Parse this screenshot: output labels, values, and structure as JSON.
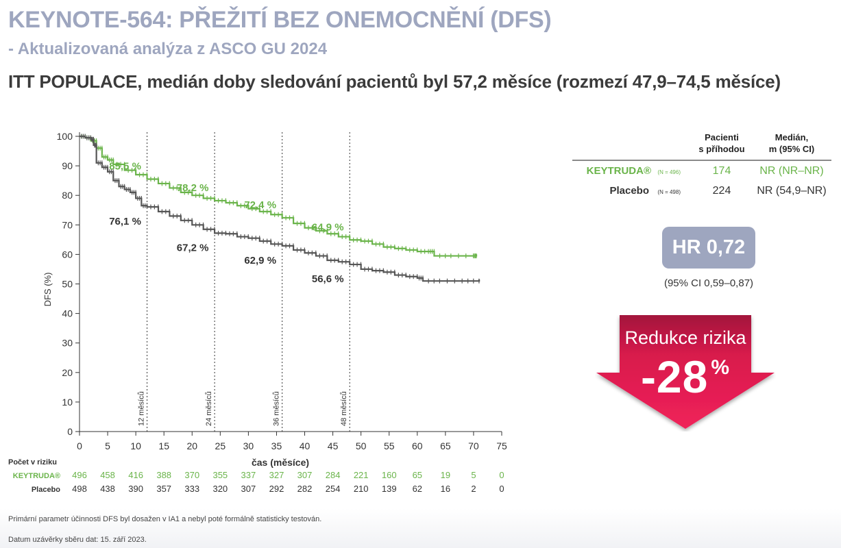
{
  "header": {
    "title": "KEYNOTE-564: PŘEŽITÍ BEZ ONEMOCNĚNÍ (DFS)",
    "subtitle": "- Aktualizovaná analýza z ASCO GU 2024",
    "heading": "ITT POPULACE, medián doby sledování pacientů byl 57,2 měsíce (rozmezí 47,9–74,5 měsíce)"
  },
  "colors": {
    "keytruda": "#6ab44a",
    "placebo": "#555555",
    "title": "#9ea6bf",
    "hr_box": "#9ea6bf",
    "arrow": "#e8174f"
  },
  "chart_data": {
    "type": "line",
    "xlabel": "čas (měsíce)",
    "ylabel": "DFS (%)",
    "xlim": [
      0,
      75
    ],
    "ylim": [
      0,
      100
    ],
    "x_ticks": [
      0,
      5,
      10,
      15,
      20,
      25,
      30,
      35,
      40,
      45,
      50,
      55,
      60,
      65,
      70,
      75
    ],
    "y_ticks": [
      0,
      10,
      20,
      30,
      40,
      50,
      60,
      70,
      80,
      90,
      100
    ],
    "reference_lines": [
      {
        "x": 12,
        "label": "12 měsíců"
      },
      {
        "x": 24,
        "label": "24 měsíců"
      },
      {
        "x": 36,
        "label": "36 měsíců"
      },
      {
        "x": 48,
        "label": "48 měsíců"
      }
    ],
    "series": [
      {
        "name": "KEYTRUDA®",
        "points": [
          [
            0,
            100
          ],
          [
            1,
            99.5
          ],
          [
            2,
            98.5
          ],
          [
            3,
            96
          ],
          [
            4,
            93
          ],
          [
            5,
            92
          ],
          [
            6,
            90.5
          ],
          [
            8,
            88.5
          ],
          [
            10,
            87
          ],
          [
            12,
            85.5
          ],
          [
            14,
            84
          ],
          [
            16,
            82.5
          ],
          [
            18,
            81
          ],
          [
            20,
            80
          ],
          [
            22,
            79
          ],
          [
            24,
            78.2
          ],
          [
            26,
            77.5
          ],
          [
            28,
            76.5
          ],
          [
            30,
            75.5
          ],
          [
            32,
            74.5
          ],
          [
            34,
            73.5
          ],
          [
            36,
            72.4
          ],
          [
            38,
            70.5
          ],
          [
            40,
            69
          ],
          [
            42,
            68
          ],
          [
            44,
            67
          ],
          [
            46,
            66
          ],
          [
            48,
            64.9
          ],
          [
            50,
            64.5
          ],
          [
            52,
            63.5
          ],
          [
            54,
            62.5
          ],
          [
            56,
            62
          ],
          [
            58,
            61.5
          ],
          [
            60,
            61
          ],
          [
            62,
            61
          ],
          [
            63,
            59.5
          ],
          [
            66,
            59.5
          ],
          [
            70,
            59.5
          ],
          [
            70.5,
            60
          ]
        ]
      },
      {
        "name": "Placebo",
        "points": [
          [
            0,
            100
          ],
          [
            1,
            99.5
          ],
          [
            2,
            99
          ],
          [
            2.5,
            97
          ],
          [
            3,
            91
          ],
          [
            4,
            89.5
          ],
          [
            5,
            88
          ],
          [
            6,
            85
          ],
          [
            7,
            83
          ],
          [
            8,
            82
          ],
          [
            9,
            81
          ],
          [
            10,
            79
          ],
          [
            11,
            76.5
          ],
          [
            12,
            76.1
          ],
          [
            14,
            74.5
          ],
          [
            16,
            73
          ],
          [
            18,
            71.5
          ],
          [
            20,
            70
          ],
          [
            22,
            68.5
          ],
          [
            24,
            67.2
          ],
          [
            26,
            67
          ],
          [
            28,
            66
          ],
          [
            30,
            65.5
          ],
          [
            32,
            64.5
          ],
          [
            34,
            63.5
          ],
          [
            36,
            62.9
          ],
          [
            38,
            61.5
          ],
          [
            40,
            60.5
          ],
          [
            42,
            59.5
          ],
          [
            44,
            58
          ],
          [
            46,
            57.5
          ],
          [
            48,
            56.6
          ],
          [
            50,
            55
          ],
          [
            52,
            54.5
          ],
          [
            54,
            54
          ],
          [
            56,
            53
          ],
          [
            58,
            52.5
          ],
          [
            60,
            52
          ],
          [
            61,
            51
          ],
          [
            64,
            51
          ],
          [
            68,
            51
          ],
          [
            71,
            51.5
          ]
        ]
      }
    ],
    "annotations": {
      "keytruda": [
        {
          "x": 12,
          "y": 85.5,
          "label": "85,5 %"
        },
        {
          "x": 24,
          "y": 78.2,
          "label": "78,2 %"
        },
        {
          "x": 36,
          "y": 72.4,
          "label": "72,4 %"
        },
        {
          "x": 48,
          "y": 64.9,
          "label": "64,9 %"
        }
      ],
      "placebo": [
        {
          "x": 12,
          "y": 76.1,
          "label": "76,1 %"
        },
        {
          "x": 24,
          "y": 67.2,
          "label": "67,2 %"
        },
        {
          "x": 36,
          "y": 62.9,
          "label": "62,9 %"
        },
        {
          "x": 48,
          "y": 56.6,
          "label": "56,6 %"
        }
      ]
    },
    "at_risk": {
      "title": "Počet v riziku",
      "rows": [
        {
          "label": "KEYTRUDA®",
          "values": [
            "496",
            "458",
            "416",
            "388",
            "370",
            "355",
            "337",
            "327",
            "307",
            "284",
            "221",
            "160",
            "65",
            "19",
            "5",
            "0"
          ]
        },
        {
          "label": "Placebo",
          "values": [
            "498",
            "438",
            "390",
            "357",
            "333",
            "320",
            "307",
            "292",
            "282",
            "254",
            "210",
            "139",
            "62",
            "16",
            "2",
            "0"
          ]
        }
      ]
    }
  },
  "legend_table": {
    "col1_line1": "Pacienti",
    "col1_line2": "s příhodou",
    "col2_line1": "Medián,",
    "col2_line2": "m (95% CI)",
    "rows": [
      {
        "name": "KEYTRUDA®",
        "n": "(N = 496)",
        "events": "174",
        "median": "NR (NR–NR)"
      },
      {
        "name": "Placebo",
        "n": "(N = 498)",
        "events": "224",
        "median": "NR (54,9–NR)"
      }
    ]
  },
  "hazard": {
    "hr": "HR 0,72",
    "ci": "(95% CI 0,59–0,87)",
    "risk_reduction_label": "Redukce rizika",
    "risk_reduction_value": "-28",
    "risk_reduction_unit": "%"
  },
  "footer": {
    "note1": "Primární parametr účinnosti DFS byl dosažen v IA1 a nebyl poté formálně statisticky testován.",
    "note2": "Datum uzávěrky sběru dat: 15. září 2023."
  }
}
